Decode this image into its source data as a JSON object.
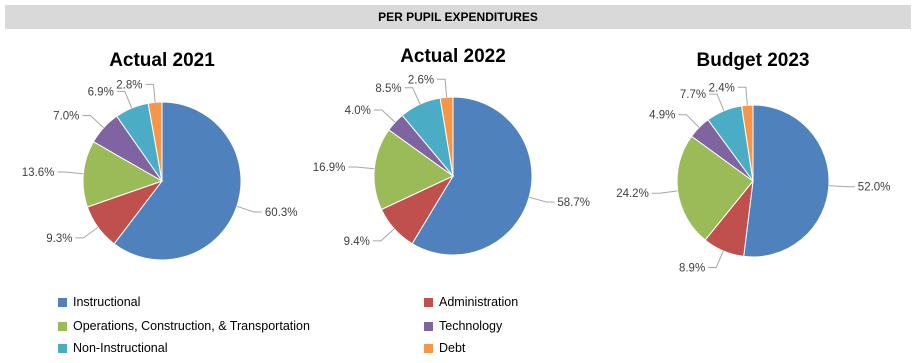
{
  "header": {
    "title": "PER PUPIL EXPENDITURES"
  },
  "colors": {
    "Instructional": "#4f81bd",
    "Administration": "#c0504d",
    "Operations, Construction, & Transportation": "#9bbb59",
    "Technology": "#8064a2",
    "Non-Instructional": "#4bacc6",
    "Debt": "#f79646"
  },
  "chart_data": [
    {
      "type": "pie",
      "title": "Actual 2021",
      "categories": [
        "Instructional",
        "Administration",
        "Operations, Construction, & Transportation",
        "Technology",
        "Non-Instructional",
        "Debt"
      ],
      "values": [
        60.3,
        9.3,
        13.6,
        7.0,
        6.9,
        2.8
      ],
      "labels": [
        "60.3%",
        "9.3%",
        "13.6%",
        "7.0%",
        "6.9%",
        "2.8%"
      ]
    },
    {
      "type": "pie",
      "title": "Actual 2022",
      "categories": [
        "Instructional",
        "Administration",
        "Operations, Construction, & Transportation",
        "Technology",
        "Non-Instructional",
        "Debt"
      ],
      "values": [
        58.7,
        9.4,
        16.9,
        4.0,
        8.5,
        2.6
      ],
      "labels": [
        "58.7%",
        "9.4%",
        "16.9%",
        "4.0%",
        "8.5%",
        "2.6%"
      ]
    },
    {
      "type": "pie",
      "title": "Budget 2023",
      "categories": [
        "Instructional",
        "Administration",
        "Operations, Construction, & Transportation",
        "Technology",
        "Non-Instructional",
        "Debt"
      ],
      "values": [
        52.0,
        8.9,
        24.2,
        4.9,
        7.7,
        2.4
      ],
      "labels": [
        "52.0%",
        "8.9%",
        "24.2%",
        "4.9%",
        "7.7%",
        "2.4%"
      ]
    }
  ],
  "legend": {
    "items": [
      "Instructional",
      "Administration",
      "Operations, Construction, & Transportation",
      "Technology",
      "Non-Instructional",
      "Debt"
    ],
    "placement": "bottom"
  }
}
